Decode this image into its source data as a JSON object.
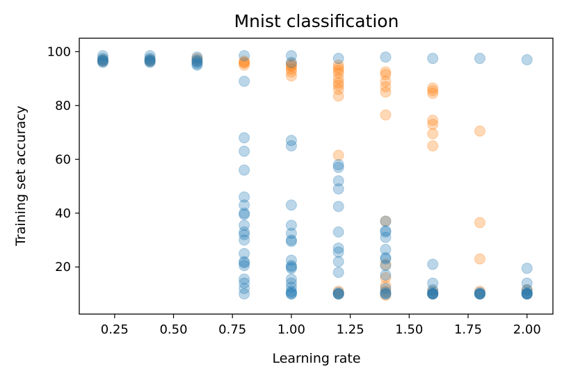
{
  "chart_data": {
    "type": "scatter",
    "title": "Mnist classification",
    "xlabel": "Learning rate",
    "ylabel": "Training set accuracy",
    "xlim": [
      0.1,
      2.11
    ],
    "ylim": [
      2.5,
      105
    ],
    "xticks": [
      0.25,
      0.5,
      0.75,
      1.0,
      1.25,
      1.5,
      1.75,
      2.0
    ],
    "xtick_labels": [
      "0.25",
      "0.50",
      "0.75",
      "1.00",
      "1.25",
      "1.50",
      "1.75",
      "2.00"
    ],
    "yticks": [
      20,
      40,
      60,
      80,
      100
    ],
    "ytick_labels": [
      "20",
      "40",
      "60",
      "80",
      "100"
    ],
    "grid": false,
    "series": [
      {
        "name": "orange",
        "color": "#ff7f0e",
        "alpha": 0.3,
        "points": [
          [
            0.2,
            97
          ],
          [
            0.2,
            96.5
          ],
          [
            0.4,
            97
          ],
          [
            0.4,
            96.5
          ],
          [
            0.6,
            97.5
          ],
          [
            0.6,
            96.5
          ],
          [
            0.8,
            96.5
          ],
          [
            0.8,
            95.8
          ],
          [
            0.8,
            95
          ],
          [
            0.8,
            96
          ],
          [
            1.0,
            95.5
          ],
          [
            1.0,
            94.5
          ],
          [
            1.0,
            93.5
          ],
          [
            1.0,
            92.5
          ],
          [
            1.0,
            91
          ],
          [
            1.0,
            95
          ],
          [
            1.2,
            95
          ],
          [
            1.2,
            94
          ],
          [
            1.2,
            93
          ],
          [
            1.2,
            92
          ],
          [
            1.2,
            90
          ],
          [
            1.2,
            88.5
          ],
          [
            1.2,
            87.5
          ],
          [
            1.2,
            86
          ],
          [
            1.2,
            83.5
          ],
          [
            1.2,
            61.5
          ],
          [
            1.2,
            11
          ],
          [
            1.2,
            10
          ],
          [
            1.4,
            92.5
          ],
          [
            1.4,
            91.5
          ],
          [
            1.4,
            89
          ],
          [
            1.4,
            87
          ],
          [
            1.4,
            85
          ],
          [
            1.4,
            76.5
          ],
          [
            1.4,
            37
          ],
          [
            1.4,
            21
          ],
          [
            1.4,
            16
          ],
          [
            1.4,
            13
          ],
          [
            1.4,
            11
          ],
          [
            1.4,
            9.5
          ],
          [
            1.6,
            86.5
          ],
          [
            1.6,
            85.5
          ],
          [
            1.6,
            84.5
          ],
          [
            1.6,
            74.5
          ],
          [
            1.6,
            73
          ],
          [
            1.6,
            69.5
          ],
          [
            1.6,
            65
          ],
          [
            1.6,
            11
          ],
          [
            1.6,
            10
          ],
          [
            1.8,
            70.5
          ],
          [
            1.8,
            36.5
          ],
          [
            1.8,
            23
          ],
          [
            1.8,
            11
          ],
          [
            1.8,
            10
          ],
          [
            2.0,
            11.5
          ],
          [
            2.0,
            10
          ]
        ]
      },
      {
        "name": "blue",
        "color": "#1f77b4",
        "alpha": 0.3,
        "points": [
          [
            0.2,
            98.5
          ],
          [
            0.2,
            97.5
          ],
          [
            0.2,
            97
          ],
          [
            0.2,
            96.5
          ],
          [
            0.2,
            96
          ],
          [
            0.2,
            96.5
          ],
          [
            0.4,
            98.5
          ],
          [
            0.4,
            97.5
          ],
          [
            0.4,
            97
          ],
          [
            0.4,
            96.5
          ],
          [
            0.4,
            96
          ],
          [
            0.4,
            96.5
          ],
          [
            0.6,
            98
          ],
          [
            0.6,
            97
          ],
          [
            0.6,
            96
          ],
          [
            0.6,
            95.5
          ],
          [
            0.6,
            95
          ],
          [
            0.6,
            96.5
          ],
          [
            0.8,
            98.5
          ],
          [
            0.8,
            89
          ],
          [
            0.8,
            68
          ],
          [
            0.8,
            63
          ],
          [
            0.8,
            56
          ],
          [
            0.8,
            46
          ],
          [
            0.8,
            43
          ],
          [
            0.8,
            40
          ],
          [
            0.8,
            39.5
          ],
          [
            0.8,
            35.5
          ],
          [
            0.8,
            33
          ],
          [
            0.8,
            32
          ],
          [
            0.8,
            30
          ],
          [
            0.8,
            25
          ],
          [
            0.8,
            22
          ],
          [
            0.8,
            21.5
          ],
          [
            0.8,
            20.5
          ],
          [
            0.8,
            15.5
          ],
          [
            0.8,
            14
          ],
          [
            0.8,
            12
          ],
          [
            0.8,
            10
          ],
          [
            1.0,
            98.5
          ],
          [
            1.0,
            96
          ],
          [
            1.0,
            67
          ],
          [
            1.0,
            65
          ],
          [
            1.0,
            43
          ],
          [
            1.0,
            35.5
          ],
          [
            1.0,
            32.5
          ],
          [
            1.0,
            30
          ],
          [
            1.0,
            29.5
          ],
          [
            1.0,
            22.5
          ],
          [
            1.0,
            20.5
          ],
          [
            1.0,
            20
          ],
          [
            1.0,
            19.5
          ],
          [
            1.0,
            15.5
          ],
          [
            1.0,
            14
          ],
          [
            1.0,
            12.5
          ],
          [
            1.0,
            11
          ],
          [
            1.0,
            10.5
          ],
          [
            1.0,
            10
          ],
          [
            1.0,
            10
          ],
          [
            1.2,
            97.5
          ],
          [
            1.2,
            58
          ],
          [
            1.2,
            57
          ],
          [
            1.2,
            52
          ],
          [
            1.2,
            49
          ],
          [
            1.2,
            42.5
          ],
          [
            1.2,
            33
          ],
          [
            1.2,
            27
          ],
          [
            1.2,
            25.5
          ],
          [
            1.2,
            22
          ],
          [
            1.2,
            18
          ],
          [
            1.2,
            10.5
          ],
          [
            1.2,
            10
          ],
          [
            1.2,
            10
          ],
          [
            1.2,
            10
          ],
          [
            1.4,
            98
          ],
          [
            1.4,
            37
          ],
          [
            1.4,
            33.5
          ],
          [
            1.4,
            33
          ],
          [
            1.4,
            31
          ],
          [
            1.4,
            26.5
          ],
          [
            1.4,
            23.5
          ],
          [
            1.4,
            23
          ],
          [
            1.4,
            20.5
          ],
          [
            1.4,
            17
          ],
          [
            1.4,
            12
          ],
          [
            1.4,
            10.5
          ],
          [
            1.4,
            10
          ],
          [
            1.4,
            10
          ],
          [
            1.6,
            97.5
          ],
          [
            1.6,
            21
          ],
          [
            1.6,
            14
          ],
          [
            1.6,
            11.5
          ],
          [
            1.6,
            10.5
          ],
          [
            1.6,
            10
          ],
          [
            1.6,
            10
          ],
          [
            1.6,
            10
          ],
          [
            1.6,
            10
          ],
          [
            1.8,
            97.5
          ],
          [
            1.8,
            10.5
          ],
          [
            1.8,
            10
          ],
          [
            1.8,
            10
          ],
          [
            1.8,
            10
          ],
          [
            1.8,
            10
          ],
          [
            2.0,
            97
          ],
          [
            2.0,
            19.5
          ],
          [
            2.0,
            14
          ],
          [
            2.0,
            11.5
          ],
          [
            2.0,
            10.5
          ],
          [
            2.0,
            10
          ],
          [
            2.0,
            10
          ],
          [
            2.0,
            10
          ],
          [
            2.0,
            10
          ]
        ]
      }
    ]
  }
}
